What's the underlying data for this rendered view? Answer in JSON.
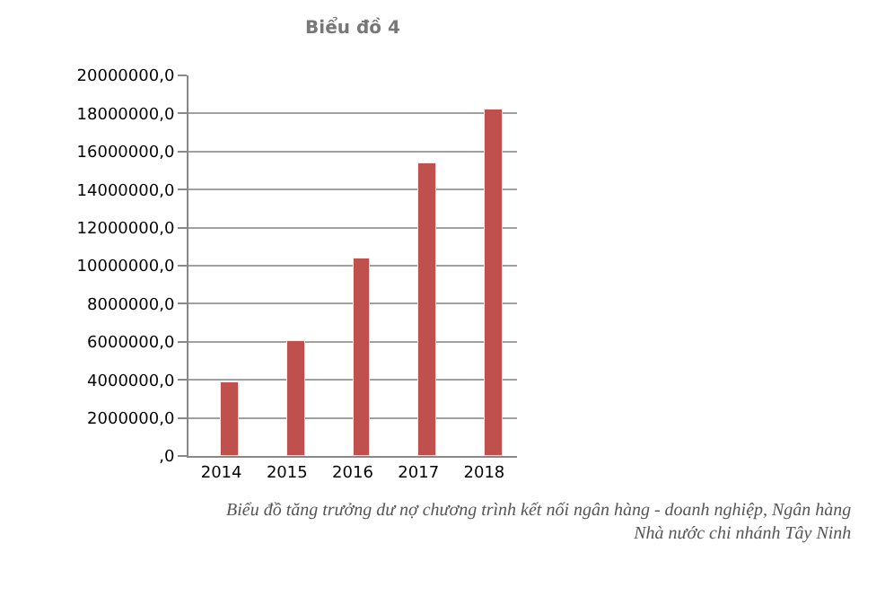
{
  "chart_data": {
    "type": "bar",
    "title": "Biểu đồ 4",
    "categories": [
      "2014",
      "2015",
      "2016",
      "2017",
      "2018"
    ],
    "series": [
      {
        "color": "#c0504d",
        "values": [
          3900000,
          6000000,
          10400000,
          15400000,
          18200000
        ]
      }
    ],
    "ylim": [
      0,
      20000000
    ],
    "yticks": [
      {
        "value": 0,
        "label": ",0"
      },
      {
        "value": 2000000,
        "label": "2000000,0"
      },
      {
        "value": 4000000,
        "label": "4000000,0"
      },
      {
        "value": 6000000,
        "label": "6000000,0"
      },
      {
        "value": 8000000,
        "label": "8000000,0"
      },
      {
        "value": 10000000,
        "label": "10000000,0"
      },
      {
        "value": 12000000,
        "label": "12000000,0"
      },
      {
        "value": 14000000,
        "label": "14000000,0"
      },
      {
        "value": 16000000,
        "label": "16000000,0"
      },
      {
        "value": 18000000,
        "label": "18000000,0"
      },
      {
        "value": 20000000,
        "label": "20000000,0"
      }
    ],
    "grid": "y",
    "annotations": [
      "Biểu đồ tăng trưởng dư nợ chương trình kết nối ngân hàng - doanh nghiệp, Ngân hàng\nNhà nước chi nhánh Tây Ninh"
    ]
  }
}
